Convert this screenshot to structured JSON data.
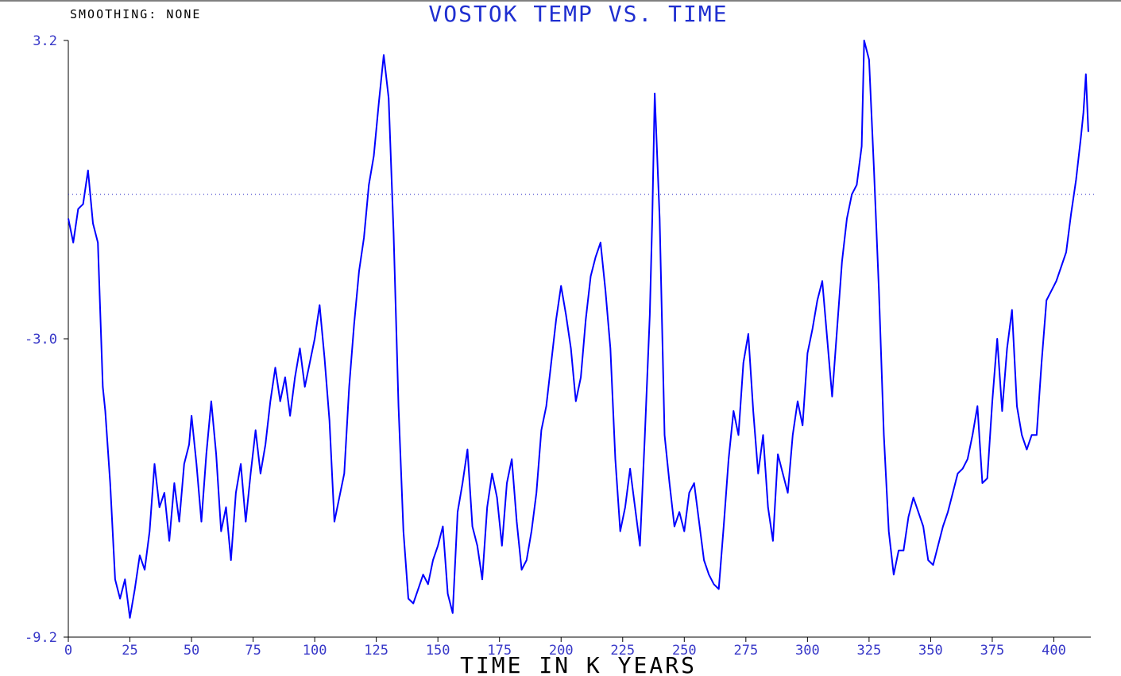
{
  "chart_data": {
    "type": "line",
    "status": "SMOOTHING: NONE",
    "title": "VOSTOK TEMP VS. TIME",
    "xlabel": "TIME IN K YEARS",
    "xlim": [
      0,
      415
    ],
    "ylim": [
      -9.2,
      3.2
    ],
    "xticks": [
      0,
      25,
      50,
      75,
      100,
      125,
      150,
      175,
      200,
      225,
      250,
      275,
      300,
      325,
      350,
      375,
      400
    ],
    "yticks": [
      3.2,
      {
        "value": -3,
        "label": "-3.0"
      },
      -9.2
    ],
    "reference_line": 0,
    "series": [
      {
        "color": "#0000ff",
        "x": [
          0,
          2,
          4,
          6,
          8,
          10,
          12,
          13,
          14,
          15,
          17,
          19,
          21,
          23,
          25,
          27,
          29,
          31,
          33,
          35,
          37,
          39,
          41,
          43,
          45,
          47,
          49,
          50,
          52,
          54,
          56,
          58,
          60,
          62,
          64,
          66,
          68,
          70,
          72,
          74,
          76,
          78,
          80,
          82,
          84,
          86,
          88,
          90,
          92,
          94,
          96,
          98,
          100,
          102,
          104,
          106,
          108,
          110,
          112,
          114,
          116,
          118,
          120,
          122,
          124,
          126,
          128,
          130,
          132,
          134,
          136,
          138,
          140,
          142,
          144,
          146,
          148,
          150,
          152,
          154,
          156,
          158,
          160,
          162,
          164,
          166,
          168,
          170,
          172,
          174,
          176,
          178,
          180,
          182,
          184,
          186,
          188,
          190,
          192,
          194,
          196,
          198,
          200,
          202,
          204,
          206,
          208,
          210,
          212,
          214,
          216,
          218,
          220,
          222,
          224,
          226,
          228,
          230,
          232,
          234,
          236,
          237,
          238,
          240,
          242,
          244,
          246,
          248,
          250,
          252,
          254,
          256,
          258,
          260,
          262,
          264,
          266,
          268,
          270,
          272,
          274,
          276,
          278,
          280,
          282,
          284,
          286,
          288,
          290,
          292,
          294,
          296,
          298,
          300,
          302,
          304,
          306,
          308,
          310,
          312,
          314,
          316,
          318,
          320,
          322,
          323,
          325,
          327,
          329,
          331,
          333,
          335,
          337,
          339,
          341,
          343,
          345,
          347,
          349,
          351,
          353,
          355,
          357,
          359,
          361,
          363,
          365,
          367,
          369,
          371,
          373,
          375,
          377,
          379,
          381,
          383,
          385,
          387,
          389,
          391,
          393,
          395,
          397,
          399,
          401,
          403,
          405,
          407,
          409,
          411,
          412,
          413,
          414
        ],
        "values": [
          -0.5,
          -1.0,
          -0.3,
          -0.2,
          0.5,
          -0.6,
          -1.0,
          -2.5,
          -4.0,
          -4.5,
          -6.0,
          -8.0,
          -8.4,
          -8.0,
          -8.8,
          -8.2,
          -7.5,
          -7.8,
          -7.0,
          -5.6,
          -6.5,
          -6.2,
          -7.2,
          -6.0,
          -6.8,
          -5.6,
          -5.2,
          -4.6,
          -5.6,
          -6.8,
          -5.4,
          -4.3,
          -5.4,
          -7.0,
          -6.5,
          -7.6,
          -6.2,
          -5.6,
          -6.8,
          -5.8,
          -4.9,
          -5.8,
          -5.2,
          -4.3,
          -3.6,
          -4.3,
          -3.8,
          -4.6,
          -3.8,
          -3.2,
          -4.0,
          -3.5,
          -3.0,
          -2.3,
          -3.4,
          -4.7,
          -6.8,
          -6.3,
          -5.8,
          -4.0,
          -2.7,
          -1.6,
          -0.9,
          0.2,
          0.8,
          1.9,
          2.9,
          2.0,
          -0.8,
          -4.4,
          -7.0,
          -8.4,
          -8.5,
          -8.2,
          -7.9,
          -8.1,
          -7.6,
          -7.3,
          -6.9,
          -8.3,
          -8.7,
          -6.6,
          -6.0,
          -5.3,
          -6.9,
          -7.3,
          -8.0,
          -6.5,
          -5.8,
          -6.3,
          -7.3,
          -6.0,
          -5.5,
          -6.8,
          -7.8,
          -7.6,
          -7.0,
          -6.2,
          -4.9,
          -4.4,
          -3.5,
          -2.6,
          -1.9,
          -2.5,
          -3.2,
          -4.3,
          -3.8,
          -2.6,
          -1.7,
          -1.3,
          -1.0,
          -2.0,
          -3.2,
          -5.5,
          -7.0,
          -6.5,
          -5.7,
          -6.5,
          -7.3,
          -5.0,
          -2.5,
          -0.5,
          2.1,
          -0.5,
          -5.0,
          -6.0,
          -6.9,
          -6.6,
          -7.0,
          -6.2,
          -6.0,
          -6.8,
          -7.6,
          -7.9,
          -8.1,
          -8.2,
          -6.9,
          -5.5,
          -4.5,
          -5.0,
          -3.5,
          -2.9,
          -4.5,
          -5.8,
          -5.0,
          -6.5,
          -7.2,
          -5.4,
          -5.8,
          -6.2,
          -5.0,
          -4.3,
          -4.8,
          -3.3,
          -2.8,
          -2.2,
          -1.8,
          -3.0,
          -4.2,
          -2.8,
          -1.4,
          -0.5,
          0.0,
          0.2,
          1.0,
          3.2,
          2.8,
          0.5,
          -2.0,
          -5.0,
          -7.0,
          -7.9,
          -7.4,
          -7.4,
          -6.7,
          -6.3,
          -6.6,
          -6.9,
          -7.6,
          -7.7,
          -7.3,
          -6.9,
          -6.6,
          -6.2,
          -5.8,
          -5.7,
          -5.5,
          -5.0,
          -4.4,
          -6.0,
          -5.9,
          -4.3,
          -3.0,
          -4.5,
          -3.2,
          -2.4,
          -4.4,
          -5.0,
          -5.3,
          -5.0,
          -5.0,
          -3.5,
          -2.2,
          -2.0,
          -1.8,
          -1.5,
          -1.2,
          -0.4,
          0.3,
          1.2,
          1.7,
          2.5,
          1.3
        ]
      }
    ]
  }
}
